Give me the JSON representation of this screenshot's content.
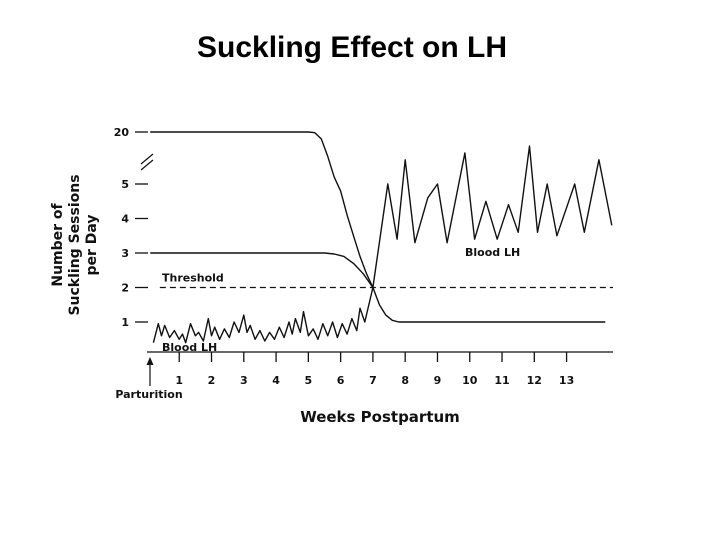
{
  "chart_data": {
    "type": "line",
    "title": "Suckling Effect on LH",
    "xlabel": "Weeks Postpartum",
    "ylabel": [
      "Number of",
      "Suckling Sessions",
      "per Day"
    ],
    "annotation": "Parturition",
    "xlim": [
      -0.2,
      14.5
    ],
    "xticks": [
      1,
      2,
      3,
      4,
      5,
      6,
      7,
      8,
      9,
      10,
      11,
      12,
      13
    ],
    "ylim": [
      0.15,
      20
    ],
    "yticks": [
      1,
      2,
      3,
      4,
      5,
      20
    ],
    "y2lim": [
      0,
      6.85
    ],
    "threshold": {
      "label": "Threshold",
      "value": 2
    },
    "color": "#111111",
    "series": [
      {
        "color": "#111111",
        "x": [
          0.1,
          1,
          2,
          3,
          4,
          5,
          5.2,
          5.4,
          5.6,
          5.8,
          6.0,
          6.2,
          6.4,
          6.6,
          6.8,
          7.0,
          7.2,
          7.4,
          7.6,
          7.8,
          8,
          9,
          10,
          11,
          12,
          13,
          14.2
        ],
        "values": [
          20,
          20,
          20,
          20,
          20,
          20,
          19.8,
          18,
          13,
          7,
          4.8,
          4.1,
          3.5,
          2.9,
          2.4,
          2.0,
          1.5,
          1.2,
          1.05,
          1.0,
          1.0,
          1.0,
          1.0,
          1.0,
          1.0,
          1.0,
          1.0
        ]
      },
      {
        "color": "#111111",
        "x": [
          0.1,
          1,
          2,
          3,
          4,
          5,
          5.5,
          5.8,
          6.1,
          6.4,
          6.7,
          7.0
        ],
        "values": [
          3,
          3,
          3,
          3,
          3,
          3,
          3,
          2.97,
          2.9,
          2.7,
          2.4,
          2.0
        ]
      },
      {
        "name": "Blood LH",
        "color": "#111111",
        "axis": "y2",
        "x": [
          0.2,
          0.35,
          0.45,
          0.55,
          0.7,
          0.85,
          1.0,
          1.1,
          1.2,
          1.35,
          1.5,
          1.6,
          1.75,
          1.9,
          2.0,
          2.1,
          2.25,
          2.4,
          2.55,
          2.7,
          2.85,
          3.0,
          3.1,
          3.2,
          3.35,
          3.5,
          3.65,
          3.8,
          3.95,
          4.1,
          4.25,
          4.4,
          4.5,
          4.6,
          4.75,
          4.85,
          5.0,
          5.15,
          5.3,
          5.45,
          5.6,
          5.75,
          5.9,
          6.05,
          6.2,
          6.35,
          6.5,
          6.6,
          6.75,
          7.0,
          7.46,
          7.75,
          8.0,
          8.3,
          8.7,
          9.0,
          9.3,
          9.85,
          10.15,
          10.5,
          10.85,
          11.2,
          11.5,
          11.85,
          12.1,
          12.4,
          12.7,
          13.25,
          13.55,
          14.0,
          14.4
        ],
        "values": [
          0.4,
          0.95,
          0.6,
          0.9,
          0.55,
          0.75,
          0.5,
          0.65,
          0.4,
          0.95,
          0.6,
          0.7,
          0.45,
          1.1,
          0.6,
          0.85,
          0.5,
          0.8,
          0.55,
          1.0,
          0.7,
          1.2,
          0.7,
          0.9,
          0.5,
          0.75,
          0.45,
          0.7,
          0.5,
          0.85,
          0.55,
          1.0,
          0.65,
          1.1,
          0.7,
          1.3,
          0.6,
          0.8,
          0.5,
          0.95,
          0.6,
          1.0,
          0.55,
          0.95,
          0.65,
          1.1,
          0.75,
          1.4,
          1.0,
          2.0,
          5.0,
          3.4,
          5.7,
          3.3,
          4.6,
          5.0,
          3.3,
          5.9,
          3.4,
          4.5,
          3.4,
          4.4,
          3.6,
          6.1,
          3.6,
          5.0,
          3.5,
          5.0,
          3.6,
          5.7,
          3.8
        ]
      }
    ]
  }
}
